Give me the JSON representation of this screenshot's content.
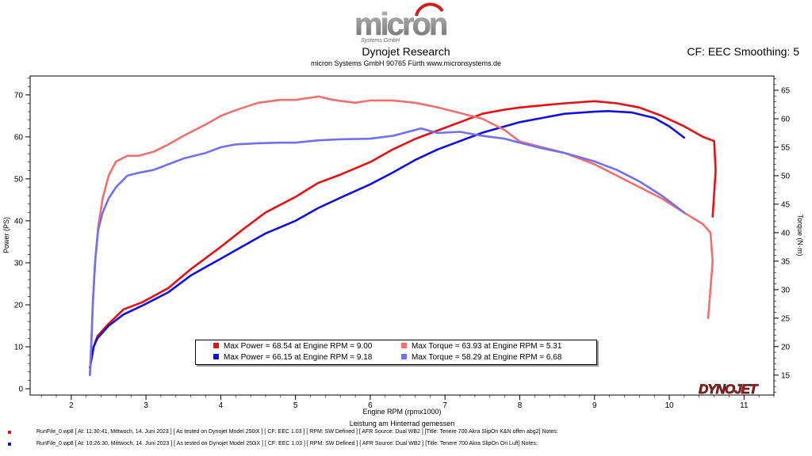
{
  "header": {
    "logo_text": "micron",
    "logo_subtext": "Systems GmbH",
    "title": "Dynojet Research",
    "subtitle": "micron Systems GmbH  90765 Fürth www.micronsystems.de",
    "smoothing": "CF: EEC Smoothing: 5"
  },
  "legend": {
    "items": [
      {
        "label": "Max Power = 68.54 at Engine RPM = 9.00",
        "color": "#e81010"
      },
      {
        "label": "Max Power = 66.15 at Engine RPM = 9.18",
        "color": "#1010e0"
      },
      {
        "label": "Max Torque = 63.93 at Engine RPM = 5.31",
        "color": "#f07070"
      },
      {
        "label": "Max Torque = 58.29 at Engine RPM = 6.68",
        "color": "#7070f0"
      }
    ]
  },
  "runs": [
    {
      "text": "RunFile_0.wp8 [ At: 11:30:41, Mittwoch, 14. Juni 2023 ] [ As tested on Dynojet Model 250iX ] [ CF: EEC 1.03 ] [ RPM: SW Defined ] [ AFR Source: Dual WB2 ] [Title: Tenere 700 Akra SlipOn K&N offen abg2]  Notes:",
      "color": "#e81010"
    },
    {
      "text": "RunFile_0.wp8 [ At: 10:26:30, Mittwoch, 14. Juni 2023 ] [ As tested on Dynojet Model 250iX ] [ CF: EEC 1.03 ] [ RPM: SW Defined ] [ AFR Source: Dual WB2 ] [Title: Tenere 700 Akra SlipOn Ori Luft]  Notes:",
      "color": "#1010e0"
    }
  ],
  "watermark": "DYNOJET",
  "chart_data": {
    "type": "line",
    "xlabel": "Engine RPM (rpmx1000)",
    "xlabel2": "Leistung am Hinterrad gemessen",
    "ylabel": "Power (PS)",
    "y2label": "Torque (N·m)",
    "xlim": [
      1.45,
      11.4
    ],
    "ylim": [
      -1.5,
      74.5
    ],
    "y2lim": [
      11.5,
      67.5
    ],
    "xticks": [
      2,
      3,
      4,
      5,
      6,
      7,
      8,
      9,
      10,
      11
    ],
    "yticks": [
      0,
      10,
      20,
      30,
      40,
      50,
      60,
      70
    ],
    "y2ticks": [
      15,
      20,
      25,
      30,
      35,
      40,
      45,
      50,
      55,
      60,
      65
    ],
    "grid": false,
    "series": [
      {
        "name": "Max Power = 68.54 at Engine RPM = 9.00",
        "axis": "left",
        "color": "#e81010",
        "x": [
          2.25,
          2.3,
          2.35,
          2.5,
          2.7,
          2.95,
          3.3,
          3.6,
          4.0,
          4.3,
          4.6,
          5.0,
          5.3,
          5.6,
          6.0,
          6.3,
          6.6,
          6.9,
          7.2,
          7.5,
          7.8,
          8.0,
          8.3,
          8.6,
          9.0,
          9.3,
          9.6,
          9.9,
          10.2,
          10.45,
          10.6,
          10.62,
          10.58
        ],
        "y": [
          5,
          10,
          12.5,
          15.5,
          18.9,
          20.6,
          24,
          28.5,
          33.8,
          38,
          42,
          45.7,
          49,
          51,
          54,
          57,
          59.5,
          61.5,
          63.5,
          65.5,
          66.5,
          67,
          67.5,
          68,
          68.5,
          68,
          67,
          65,
          62.5,
          60,
          59,
          52,
          41
        ]
      },
      {
        "name": "Max Power = 66.15 at Engine RPM = 9.18",
        "axis": "left",
        "color": "#1010e0",
        "x": [
          2.25,
          2.3,
          2.35,
          2.5,
          2.7,
          2.95,
          3.3,
          3.6,
          4.0,
          4.3,
          4.6,
          5.0,
          5.3,
          5.6,
          6.0,
          6.3,
          6.6,
          6.9,
          7.2,
          7.5,
          7.8,
          8.0,
          8.3,
          8.6,
          9.0,
          9.18,
          9.5,
          9.8,
          10.0,
          10.2
        ],
        "y": [
          5,
          10,
          12,
          15,
          17.7,
          19.8,
          23,
          27,
          31,
          34,
          37,
          40,
          43,
          45.5,
          48.7,
          51.5,
          54.5,
          57,
          59,
          61,
          62.5,
          63.5,
          64.5,
          65.5,
          66,
          66.15,
          65.8,
          64.5,
          62.5,
          59.8
        ]
      },
      {
        "name": "Max Torque = 63.93 at Engine RPM = 5.31",
        "axis": "right",
        "color": "#f07070",
        "x": [
          2.25,
          2.27,
          2.29,
          2.32,
          2.36,
          2.42,
          2.5,
          2.6,
          2.75,
          2.9,
          3.1,
          3.3,
          3.5,
          3.8,
          4.0,
          4.2,
          4.5,
          4.8,
          5.0,
          5.31,
          5.5,
          5.8,
          6.0,
          6.3,
          6.6,
          6.9,
          7.2,
          7.5,
          7.8,
          8.0,
          8.3,
          8.6,
          9.0,
          9.3,
          9.6,
          9.9,
          10.2,
          10.45,
          10.55,
          10.58,
          10.55,
          10.52
        ],
        "y": [
          15,
          21,
          28,
          35,
          41,
          46,
          50,
          52.5,
          53.5,
          53.5,
          54.2,
          55.5,
          57,
          59,
          60.5,
          61.5,
          62.8,
          63.3,
          63.3,
          63.9,
          63.3,
          62.8,
          63.2,
          63.2,
          62.8,
          62,
          61,
          60,
          58,
          56,
          55,
          54,
          52,
          50,
          48,
          46,
          43.5,
          41.5,
          40,
          35,
          30,
          25
        ]
      },
      {
        "name": "Max Torque = 58.29 at Engine RPM = 6.68",
        "axis": "right",
        "color": "#7070f0",
        "x": [
          2.25,
          2.27,
          2.29,
          2.32,
          2.36,
          2.42,
          2.5,
          2.6,
          2.75,
          2.9,
          3.1,
          3.3,
          3.5,
          3.8,
          4.0,
          4.2,
          4.5,
          4.8,
          5.0,
          5.3,
          5.6,
          6.0,
          6.3,
          6.68,
          6.9,
          7.2,
          7.5,
          7.8,
          8.0,
          8.3,
          8.6,
          9.0,
          9.3,
          9.6,
          9.9,
          10.2
        ],
        "y": [
          15,
          21,
          28,
          35,
          40.5,
          43.5,
          46,
          48,
          50,
          50.5,
          51,
          52,
          53,
          54,
          55,
          55.5,
          55.7,
          55.8,
          55.8,
          56.2,
          56.4,
          56.5,
          57,
          58.3,
          57.5,
          57.7,
          57,
          56.5,
          55.8,
          54.8,
          54,
          52.5,
          51,
          49,
          46.5,
          43.5
        ]
      }
    ]
  }
}
